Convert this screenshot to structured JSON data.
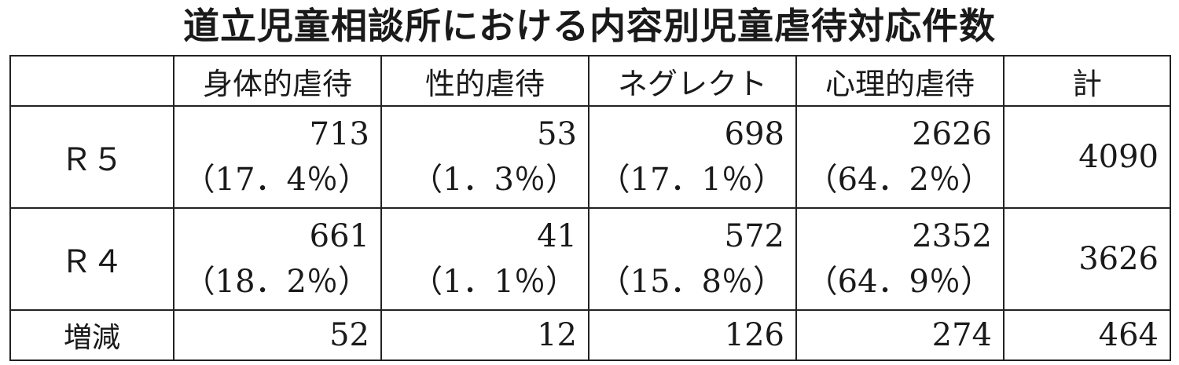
{
  "title": "道立児童相談所における内容別児童虐待対応件数",
  "chart_data": {
    "type": "table",
    "title": "道立児童相談所における内容別児童虐待対応件数",
    "columns": [
      "",
      "身体的虐待",
      "性的虐待",
      "ネグレクト",
      "心理的虐待",
      "計"
    ],
    "rows": [
      {
        "label": "Ｒ５",
        "values": [
          "713",
          "53",
          "698",
          "2626"
        ],
        "percents": [
          "（17．4％）",
          "（1．3％）",
          "（17．1％）",
          "（64．2％）"
        ],
        "total": "4090"
      },
      {
        "label": "Ｒ４",
        "values": [
          "661",
          "41",
          "572",
          "2352"
        ],
        "percents": [
          "（18．2％）",
          "（1．1％）",
          "（15．8％）",
          "（64．9％）"
        ],
        "total": "3626"
      },
      {
        "label": "増減",
        "values": [
          "52",
          "12",
          "126",
          "274"
        ],
        "total": "464"
      }
    ]
  }
}
